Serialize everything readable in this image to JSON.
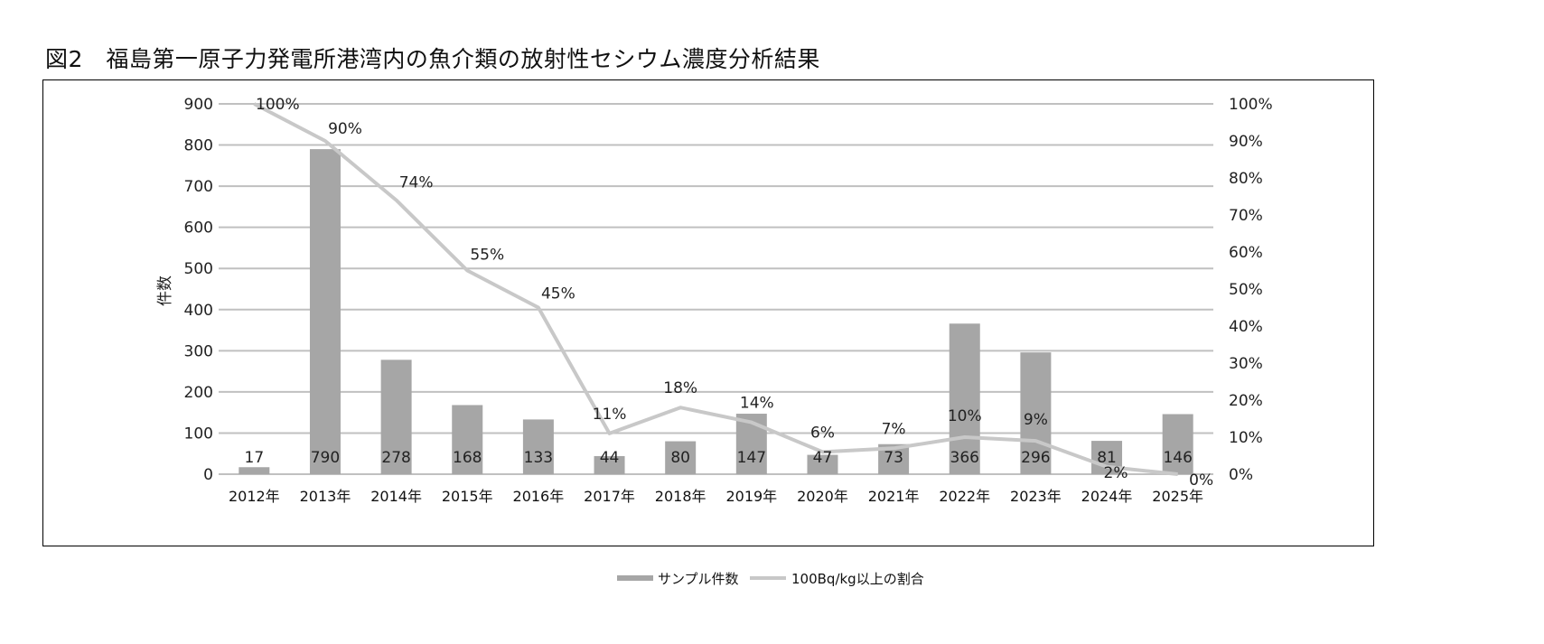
{
  "title": "図2　福島第一原子力発電所港湾内の魚介類の放射性セシウム濃度分析結果",
  "chart_data": {
    "type": "bar+line",
    "title": "図2　福島第一原子力発電所港湾内の魚介類の放射性セシウム濃度分析結果",
    "categories": [
      "2012年",
      "2013年",
      "2014年",
      "2015年",
      "2016年",
      "2017年",
      "2018年",
      "2019年",
      "2020年",
      "2021年",
      "2022年",
      "2023年",
      "2024年",
      "2025年"
    ],
    "series": [
      {
        "name": "サンプル件数",
        "type": "bar",
        "axis": "left",
        "color": "#a6a6a6",
        "values": [
          17,
          790,
          278,
          168,
          133,
          44,
          80,
          147,
          47,
          73,
          366,
          296,
          81,
          146
        ],
        "labels": [
          "17",
          "790",
          "278",
          "168",
          "133",
          "44",
          "80",
          "147",
          "47",
          "73",
          "366",
          "296",
          "81",
          "146"
        ]
      },
      {
        "name": "100Bq/kg以上の割合",
        "type": "line",
        "axis": "right",
        "color": "#c8c8c8",
        "values": [
          100,
          90,
          74,
          55,
          45,
          11,
          18,
          14,
          6,
          7,
          10,
          9,
          2,
          0
        ],
        "labels": [
          "100%",
          "90%",
          "74%",
          "55%",
          "45%",
          "11%",
          "18%",
          "14%",
          "6%",
          "7%",
          "10%",
          "9%",
          "2%",
          "0%"
        ]
      }
    ],
    "ylabel": "件数",
    "ylim": [
      0,
      900
    ],
    "y_ticks": [
      "0",
      "100",
      "200",
      "300",
      "400",
      "500",
      "600",
      "700",
      "800",
      "900"
    ],
    "y2lim": [
      0,
      100
    ],
    "y2_ticks": [
      "0%",
      "10%",
      "20%",
      "30%",
      "40%",
      "50%",
      "60%",
      "70%",
      "80%",
      "90%",
      "100%"
    ],
    "grid": true,
    "legend": "bottom"
  }
}
